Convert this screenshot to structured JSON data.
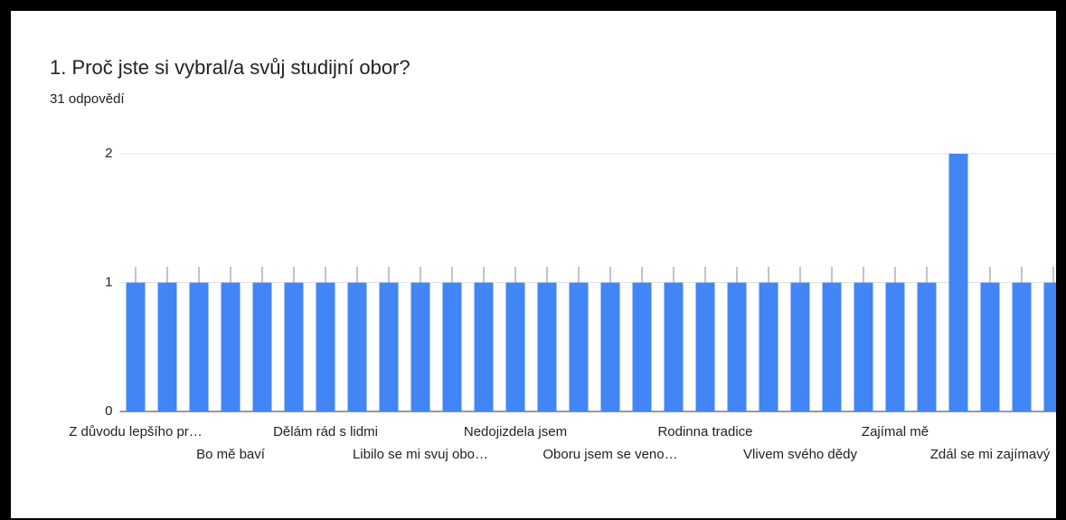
{
  "chart_data": {
    "type": "bar",
    "title": "1. Proč jste si vybral/a svůj studijní obor?",
    "subtitle": "31 odpovědí",
    "categories": [
      "Z důvodu lepšího pr…",
      null,
      null,
      "Bo mě baví",
      null,
      null,
      "Dělám rád s lidmi",
      null,
      null,
      "Libilo se mi svuj obo…",
      null,
      null,
      "Nedojizdela jsem",
      null,
      null,
      "Oboru jsem se veno…",
      null,
      null,
      "Rodinna tradice",
      null,
      null,
      "Vlivem svého dědy",
      null,
      null,
      "Zajímal mě",
      null,
      null,
      "Zdál se mi zajímavý",
      null,
      null
    ],
    "values": [
      1,
      1,
      1,
      1,
      1,
      1,
      1,
      1,
      1,
      1,
      1,
      1,
      1,
      1,
      1,
      1,
      1,
      1,
      1,
      1,
      1,
      1,
      1,
      1,
      1,
      1,
      2,
      1,
      1,
      1
    ],
    "color": "#4285f4",
    "ylim": [
      0,
      2
    ],
    "yticks": [
      0,
      1,
      2
    ],
    "grid": true
  }
}
